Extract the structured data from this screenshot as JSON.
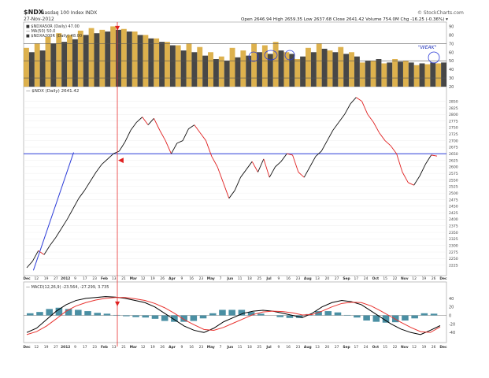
{
  "header": {
    "symbol": "$NDX",
    "name": "Nasdaq 100 Index  INDX",
    "date": "27-Nov-2012",
    "source": "© StockCharts.com",
    "quote": "Open 2646.94  High 2659.35  Low 2637.68  Close 2641.42  Volume 754.0M  Chg -16.25 (-0.36%) ▾"
  },
  "panels": {
    "breadth_legend_1": "■ $NDXA50R (Daily) 47.00",
    "breadth_legend_2": "— MA(50) 50.0",
    "breadth_legend_3": "■ $NDXA200R (Daily) 48.00",
    "price_legend": "— $NDX (Daily) 2641.42",
    "macd_legend": "— MACD(12,26,9) -23.564, -27.299, 3.735",
    "weak_annotation": "\"WEAK\""
  },
  "chart_data": [
    {
      "type": "area",
      "title": "$NDXA50R / $NDXA200R (Daily)",
      "ylim": [
        20,
        95
      ],
      "y_ticks": [
        20,
        30,
        40,
        50,
        60,
        70,
        80,
        90
      ],
      "reference_lines": [
        70,
        50,
        30
      ],
      "series": [
        {
          "name": "$NDXA50R",
          "color": "#d9a93a",
          "values": [
            65,
            70,
            78,
            82,
            80,
            85,
            88,
            86,
            90,
            87,
            84,
            80,
            76,
            72,
            68,
            70,
            66,
            60,
            55,
            65,
            62,
            70,
            68,
            72,
            60,
            52,
            65,
            70,
            62,
            66,
            60,
            48,
            50,
            47,
            52,
            50,
            45,
            46,
            47
          ]
        },
        {
          "name": "$NDXA200R",
          "color": "#333333",
          "values": [
            60,
            62,
            70,
            72,
            75,
            80,
            82,
            84,
            86,
            84,
            80,
            76,
            72,
            68,
            62,
            60,
            56,
            52,
            50,
            54,
            56,
            60,
            58,
            62,
            58,
            55,
            60,
            64,
            60,
            58,
            55,
            50,
            52,
            48,
            49,
            48,
            47,
            48,
            48
          ]
        }
      ]
    },
    {
      "type": "line",
      "title": "$NDX (Daily) 2641.42",
      "ylim": [
        2200,
        2900
      ],
      "y_ticks": [
        2225,
        2250,
        2275,
        2300,
        2325,
        2350,
        2375,
        2400,
        2425,
        2450,
        2475,
        2500,
        2525,
        2550,
        2575,
        2600,
        2625,
        2650,
        2675,
        2700,
        2725,
        2750,
        2775,
        2800,
        2825,
        2850
      ],
      "x_ticks": [
        "Dec",
        "12",
        "19",
        "27",
        "2012",
        "9",
        "17",
        "23",
        "Feb",
        "13",
        "21",
        "Mar",
        "12",
        "19",
        "26",
        "Apr",
        "9",
        "16",
        "23",
        "May",
        "7",
        "Jun",
        "11",
        "18",
        "25",
        "Jul",
        "9",
        "16",
        "23",
        "Aug",
        "13",
        "20",
        "27",
        "Sep",
        "17",
        "24",
        "Oct",
        "15",
        "22",
        "Nov",
        "12",
        "19",
        "26",
        "Dec"
      ],
      "horizontal_line": 2650,
      "trendline": [
        [
          0.055,
          2205
        ],
        [
          0.215,
          2655
        ]
      ],
      "values": [
        2215,
        2240,
        2280,
        2265,
        2300,
        2330,
        2365,
        2400,
        2440,
        2480,
        2510,
        2545,
        2580,
        2610,
        2630,
        2650,
        2660,
        2695,
        2740,
        2770,
        2790,
        2760,
        2785,
        2740,
        2700,
        2650,
        2690,
        2700,
        2745,
        2760,
        2730,
        2700,
        2640,
        2600,
        2540,
        2480,
        2510,
        2560,
        2590,
        2620,
        2580,
        2630,
        2560,
        2600,
        2620,
        2650,
        2645,
        2580,
        2560,
        2600,
        2640,
        2660,
        2700,
        2740,
        2770,
        2800,
        2840,
        2865,
        2850,
        2800,
        2770,
        2730,
        2700,
        2680,
        2650,
        2580,
        2540,
        2530,
        2565,
        2610,
        2645,
        2641
      ]
    },
    {
      "type": "line",
      "title": "MACD(12,26,9)",
      "ylim": [
        -60,
        60
      ],
      "y_ticks": [
        40,
        20,
        0,
        -20,
        -40
      ],
      "series": [
        {
          "name": "MACD",
          "color": "#000000",
          "values": [
            -40,
            -30,
            -10,
            10,
            25,
            35,
            40,
            42,
            44,
            43,
            40,
            35,
            30,
            20,
            5,
            -10,
            -25,
            -35,
            -40,
            -30,
            -15,
            -5,
            5,
            10,
            12,
            10,
            5,
            0,
            -5,
            5,
            20,
            30,
            35,
            32,
            25,
            10,
            -5,
            -20,
            -32,
            -40,
            -45,
            -35,
            -24
          ]
        },
        {
          "name": "Signal",
          "color": "#e8332f",
          "values": [
            -45,
            -38,
            -25,
            -8,
            10,
            22,
            30,
            36,
            40,
            42,
            42,
            39,
            35,
            28,
            18,
            5,
            -10,
            -22,
            -33,
            -35,
            -28,
            -18,
            -8,
            2,
            8,
            10,
            9,
            6,
            1,
            2,
            10,
            20,
            28,
            31,
            30,
            22,
            10,
            -3,
            -16,
            -28,
            -38,
            -40,
            -27
          ]
        }
      ],
      "histogram": [
        5,
        8,
        15,
        18,
        15,
        13,
        10,
        6,
        4,
        1,
        -2,
        -4,
        -5,
        -8,
        -13,
        -15,
        -15,
        -13,
        -7,
        5,
        13,
        13,
        13,
        8,
        4,
        0,
        -4,
        -6,
        -6,
        3,
        10,
        10,
        7,
        1,
        -5,
        -12,
        -15,
        -17,
        -16,
        -12,
        -7,
        5,
        4
      ]
    }
  ]
}
